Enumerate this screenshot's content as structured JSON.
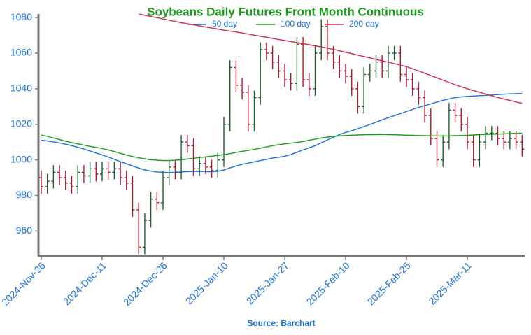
{
  "chart_data": {
    "type": "ohlc",
    "title": "Soybeans Daily Futures Front Month Continuous",
    "source": "Source: Barchart",
    "categories": [
      "2024-Nov-26",
      null,
      null,
      null,
      null,
      null,
      null,
      null,
      null,
      null,
      "2024-Dec-11",
      null,
      null,
      null,
      null,
      null,
      null,
      null,
      null,
      null,
      "2024-Dec-26",
      null,
      null,
      null,
      null,
      null,
      null,
      null,
      null,
      null,
      "2025-Jan-10",
      null,
      null,
      null,
      null,
      null,
      null,
      null,
      null,
      null,
      "2025-Jan-27",
      null,
      null,
      null,
      null,
      null,
      null,
      null,
      null,
      null,
      "2025-Feb-10",
      null,
      null,
      null,
      null,
      null,
      null,
      null,
      null,
      null,
      "2025-Feb-25",
      null,
      null,
      null,
      null,
      null,
      null,
      null,
      null,
      null,
      "2025-Mar-11",
      null,
      null,
      null,
      null,
      null,
      null,
      null,
      null,
      null
    ],
    "open": [
      990,
      985,
      988,
      993,
      990,
      987,
      985,
      993,
      991,
      995,
      992,
      995,
      993,
      995,
      990,
      987,
      972,
      951,
      966,
      978,
      976,
      990,
      996,
      993,
      1010,
      1008,
      995,
      998,
      996,
      994,
      1000,
      1020,
      1052,
      1042,
      1038,
      1020,
      1035,
      1062,
      1060,
      1055,
      1050,
      1045,
      1043,
      1065,
      1045,
      1040,
      1060,
      1075,
      1060,
      1055,
      1050,
      1047,
      1040,
      1030,
      1048,
      1050,
      1055,
      1050,
      1060,
      1060,
      1048,
      1045,
      1040,
      1035,
      1025,
      1012,
      1000,
      1010,
      1028,
      1025,
      1020,
      1010,
      1000,
      1010,
      1015,
      1015,
      1012,
      1010,
      1012,
      1010
    ],
    "high": [
      994,
      992,
      997,
      997,
      994,
      991,
      997,
      997,
      999,
      999,
      999,
      999,
      999,
      999,
      994,
      991,
      976,
      970,
      982,
      982,
      994,
      1000,
      1000,
      1014,
      1014,
      1012,
      1002,
      1002,
      1000,
      1004,
      1024,
      1056,
      1056,
      1046,
      1042,
      1039,
      1066,
      1066,
      1064,
      1059,
      1054,
      1049,
      1069,
      1069,
      1049,
      1064,
      1079,
      1079,
      1064,
      1059,
      1054,
      1051,
      1044,
      1052,
      1054,
      1059,
      1059,
      1064,
      1064,
      1064,
      1052,
      1049,
      1044,
      1039,
      1029,
      1016,
      1014,
      1032,
      1032,
      1029,
      1024,
      1014,
      1014,
      1019,
      1019,
      1019,
      1016,
      1016,
      1016,
      1014
    ],
    "low": [
      981,
      981,
      984,
      986,
      983,
      981,
      981,
      987,
      987,
      988,
      988,
      989,
      989,
      986,
      983,
      968,
      947,
      947,
      962,
      972,
      972,
      986,
      989,
      989,
      1004,
      991,
      991,
      992,
      990,
      990,
      996,
      1016,
      1038,
      1034,
      1016,
      1016,
      1031,
      1056,
      1051,
      1046,
      1041,
      1039,
      1039,
      1041,
      1036,
      1036,
      1056,
      1056,
      1051,
      1046,
      1043,
      1036,
      1026,
      1026,
      1044,
      1046,
      1046,
      1046,
      1056,
      1044,
      1041,
      1036,
      1031,
      1021,
      1008,
      996,
      996,
      1006,
      1021,
      1016,
      1006,
      996,
      996,
      1006,
      1011,
      1008,
      1006,
      1006,
      1006,
      1002
    ],
    "close": [
      985,
      988,
      993,
      990,
      987,
      985,
      993,
      991,
      995,
      992,
      995,
      993,
      995,
      990,
      987,
      972,
      951,
      966,
      978,
      976,
      990,
      996,
      993,
      1010,
      1008,
      995,
      998,
      996,
      994,
      1000,
      1020,
      1052,
      1042,
      1038,
      1020,
      1035,
      1062,
      1060,
      1055,
      1050,
      1045,
      1043,
      1065,
      1045,
      1040,
      1060,
      1075,
      1060,
      1055,
      1050,
      1047,
      1040,
      1030,
      1048,
      1050,
      1055,
      1050,
      1060,
      1060,
      1048,
      1045,
      1040,
      1035,
      1025,
      1012,
      1000,
      1010,
      1028,
      1025,
      1020,
      1010,
      1000,
      1010,
      1015,
      1015,
      1012,
      1010,
      1012,
      1010,
      1006
    ],
    "up_color": "#1e5e2a",
    "down_color": "#b0182e",
    "series": [
      {
        "name": "50 day",
        "color": "#1a6fe0",
        "values": [
          1011,
          1010.6,
          1010.1,
          1009.5,
          1008.8,
          1008,
          1007.1,
          1006.1,
          1005,
          1003.9,
          1002.8,
          1001.6,
          1000.3,
          999,
          997.8,
          996.6,
          995.4,
          994.4,
          993.7,
          993.2,
          993,
          992.9,
          993,
          993.2,
          993.4,
          993.5,
          993.5,
          993.4,
          993.3,
          993.6,
          994.4,
          995.5,
          996.6,
          997.5,
          998.2,
          998.9,
          999.6,
          1000.3,
          1001,
          1001.5,
          1002,
          1003,
          1004.3,
          1005.6,
          1006.8,
          1008,
          1009.6,
          1011.2,
          1012.8,
          1014.2,
          1015.4,
          1016.4,
          1017.5,
          1018.7,
          1019.9,
          1021.2,
          1022.5,
          1023.7,
          1024.9,
          1026,
          1027.2,
          1028.4,
          1029.5,
          1030.5,
          1031.5,
          1032.5,
          1033.5,
          1034.3,
          1035,
          1035.4,
          1035.7,
          1035.9,
          1036.1,
          1036.3,
          1036.5,
          1036.7,
          1036.9,
          1037.1,
          1037.2,
          1037.3
        ]
      },
      {
        "name": "100 day",
        "color": "#1a9a1a",
        "values": [
          1014,
          1013.2,
          1012.3,
          1011.4,
          1010.5,
          1009.7,
          1009,
          1008.3,
          1007.6,
          1007,
          1006.4,
          1005.6,
          1004.7,
          1003.7,
          1002.7,
          1001.9,
          1001.2,
          1000.6,
          1000.1,
          999.8,
          999.6,
          999.6,
          999.8,
          1000.1,
          1000.5,
          1000.9,
          1001.3,
          1001.7,
          1002.1,
          1002.5,
          1002.9,
          1003.5,
          1004.2,
          1004.8,
          1005.3,
          1005.9,
          1006.6,
          1007.3,
          1008,
          1008.5,
          1009,
          1009.4,
          1009.8,
          1010.3,
          1011,
          1011.7,
          1012.3,
          1012.8,
          1013.2,
          1013.5,
          1013.7,
          1013.9,
          1014,
          1014.1,
          1014.2,
          1014.2,
          1014.3,
          1014.2,
          1014.1,
          1014,
          1013.9,
          1013.8,
          1013.7,
          1013.6,
          1013.5,
          1013.5,
          1013.4,
          1013.5,
          1013.6,
          1013.7,
          1013.8,
          1014,
          1014.2,
          1014.3,
          1014.4,
          1014.5,
          1014.6,
          1014.8,
          1014.9,
          1015
        ]
      },
      {
        "name": "200 day",
        "color": "#d42a4a",
        "values": [
          null,
          null,
          null,
          null,
          null,
          null,
          null,
          null,
          null,
          null,
          null,
          null,
          null,
          null,
          null,
          null,
          1082,
          1081.3,
          1080.6,
          1079.9,
          1079.2,
          1078.5,
          1077.8,
          1077.1,
          1076.5,
          1075.9,
          1075.3,
          1074.7,
          1074.1,
          1073.5,
          1072.9,
          1072.4,
          1071.9,
          1071.3,
          1070.7,
          1070.1,
          1069.5,
          1068.9,
          1068.3,
          1067.7,
          1067.1,
          1066.5,
          1065.9,
          1065.3,
          1064.7,
          1064.1,
          1063.5,
          1062.8,
          1062.1,
          1061.3,
          1060.5,
          1059.7,
          1058.9,
          1058.1,
          1057.3,
          1056.5,
          1055.7,
          1054.9,
          1054.1,
          1053.3,
          1052.4,
          1051.2,
          1050,
          1048.7,
          1047.4,
          1046.1,
          1044.8,
          1043.5,
          1042.3,
          1041.1,
          1040,
          1039,
          1038,
          1037,
          1036,
          1035.1,
          1034.2,
          1033.4,
          1032.6,
          1031.8
        ]
      }
    ],
    "ylim": [
      946,
      1082
    ],
    "yticks": [
      960,
      980,
      1000,
      1020,
      1040,
      1060,
      1080
    ]
  }
}
